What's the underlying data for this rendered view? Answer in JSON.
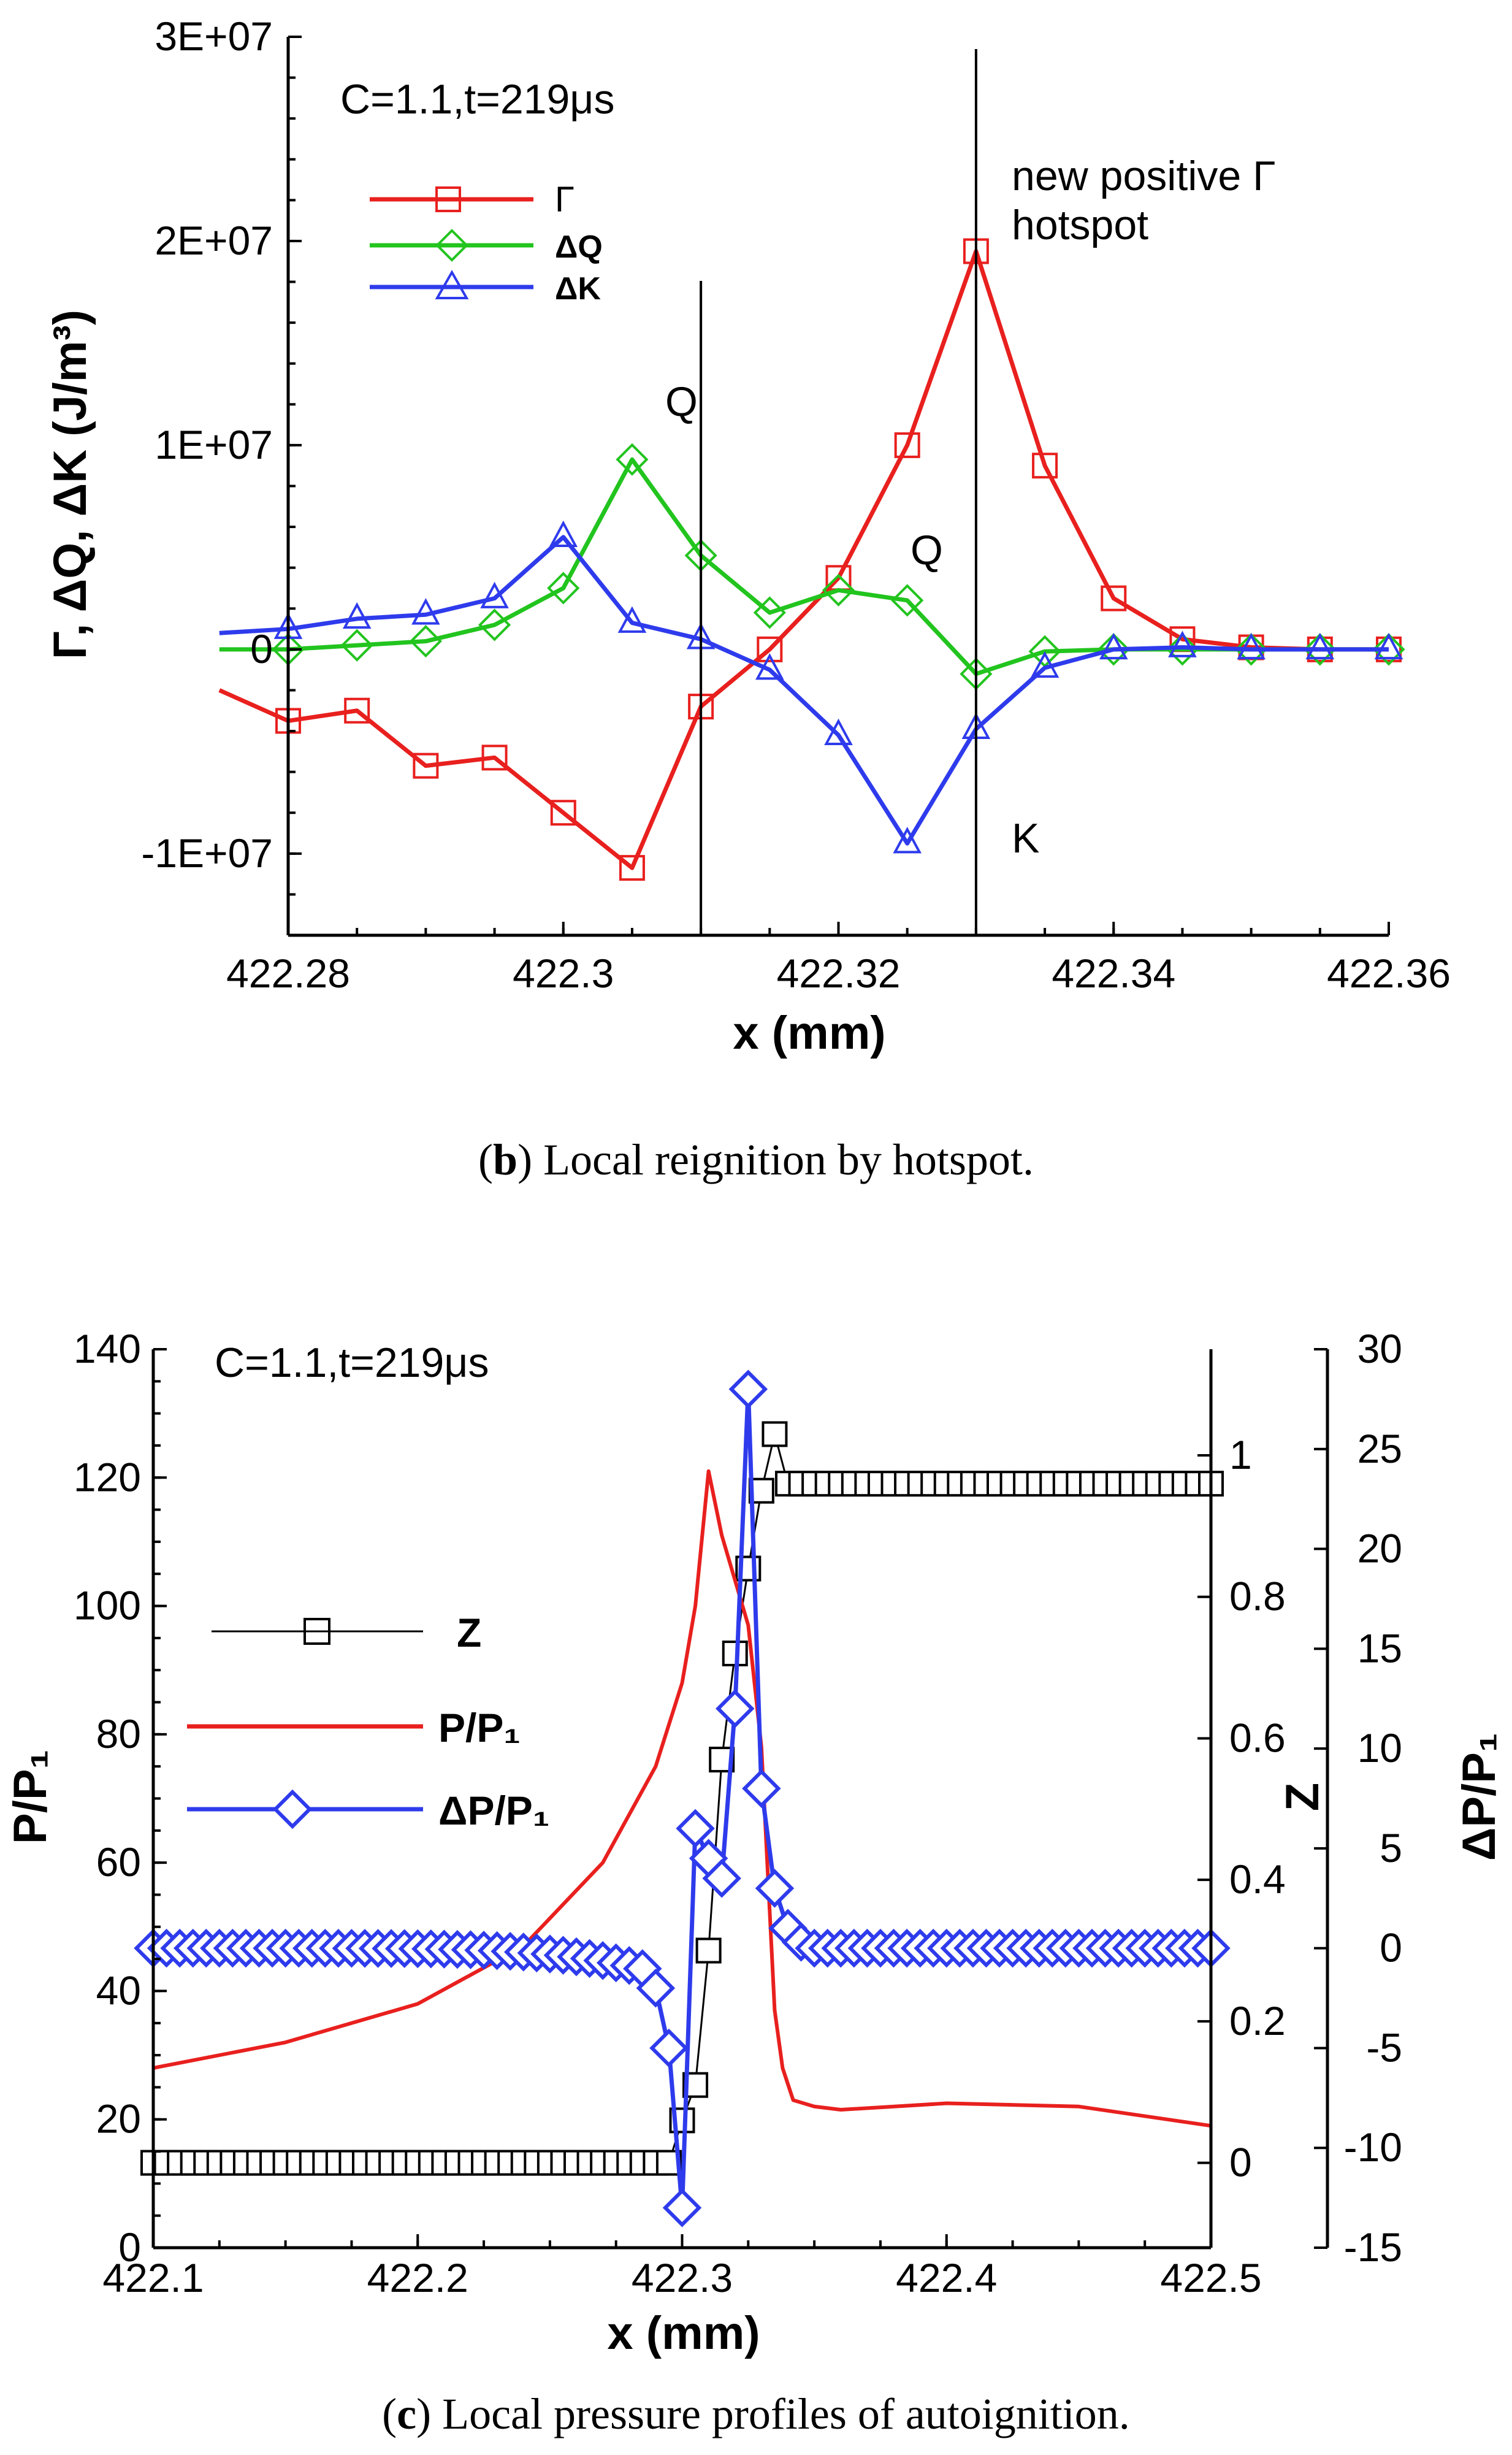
{
  "colors": {
    "red": "#e8201e",
    "green": "#22c41e",
    "blue": "#2e3bec",
    "black": "#000000"
  },
  "chart_data": [
    {
      "id": "b",
      "type": "line",
      "annotation": "C=1.1,t=219μs",
      "xlabel": "x (mm)",
      "ylabel": "Γ, ΔQ, ΔK (J/m³)",
      "xlim": [
        422.28,
        422.36
      ],
      "ylim": [
        -14000000,
        30000000
      ],
      "xticks": [
        422.28,
        422.3,
        422.32,
        422.34,
        422.36
      ],
      "xtick_labels": [
        "422.28",
        "422.3",
        "422.32",
        "422.34",
        "422.36"
      ],
      "yticks": [
        -10000000,
        0,
        10000000,
        20000000,
        30000000
      ],
      "ytick_labels": [
        "-1E+07",
        "0",
        "1E+07",
        "2E+07",
        "3E+07"
      ],
      "x": [
        422.275,
        422.28,
        422.285,
        422.29,
        422.295,
        422.3,
        422.305,
        422.31,
        422.315,
        422.32,
        422.325,
        422.33,
        422.335,
        422.34,
        422.345,
        422.35,
        422.355,
        422.36
      ],
      "series": [
        {
          "name": "Γ",
          "color": "#e8201e",
          "marker": "square",
          "values": [
            -2000000,
            -3500000,
            -3000000,
            -5700000,
            -5300000,
            -8000000,
            -10700000,
            -2800000,
            0,
            3500000,
            10000000,
            19500000,
            9000000,
            2500000,
            500000,
            100000,
            0,
            0
          ]
        },
        {
          "name": "ΔQ",
          "color": "#22c41e",
          "marker": "diamond",
          "values": [
            0,
            0,
            200000,
            400000,
            1200000,
            3000000,
            9300000,
            4600000,
            1800000,
            2900000,
            2400000,
            -1200000,
            -100000,
            0,
            0,
            0,
            0,
            0
          ]
        },
        {
          "name": "ΔK",
          "color": "#2e3bec",
          "marker": "triangle",
          "values": [
            800000,
            1000000,
            1500000,
            1700000,
            2500000,
            5500000,
            1300000,
            500000,
            -1000000,
            -4200000,
            -9500000,
            -3900000,
            -900000,
            0,
            100000,
            0,
            0,
            0
          ]
        }
      ],
      "vlines": [
        422.31,
        422.33
      ],
      "labels": {
        "q1": "Q",
        "q2": "Q",
        "k": "K",
        "hotspot_line1": "new positive Γ",
        "hotspot_line2": "hotspot"
      },
      "legend": [
        "Γ",
        "ΔQ",
        "ΔK"
      ],
      "caption_letter": "b",
      "caption_text": "Local reignition by hotspot."
    },
    {
      "id": "c",
      "type": "line",
      "annotation": "C=1.1,t=219μs",
      "xlabel": "x (mm)",
      "ylabel_left": "P/P₁",
      "ylabel_right1": "Z",
      "ylabel_right2": "ΔP/P₁",
      "xlim": [
        422.1,
        422.5
      ],
      "ylim_left": [
        0,
        140
      ],
      "ylim_right1": [
        -0.12,
        1.15
      ],
      "ylim_right2": [
        -15,
        30
      ],
      "xticks": [
        422.1,
        422.2,
        422.3,
        422.4,
        422.5
      ],
      "xtick_labels": [
        "422.1",
        "422.2",
        "422.3",
        "422.4",
        "422.5"
      ],
      "yticks_left": [
        0,
        20,
        40,
        60,
        80,
        100,
        120,
        140
      ],
      "yticks_right1": [
        0,
        0.2,
        0.4,
        0.6,
        0.8,
        1
      ],
      "ytick_labels_right1": [
        "0",
        "0.2",
        "0.4",
        "0.6",
        "0.8",
        "1"
      ],
      "yticks_right2": [
        -15,
        -10,
        -5,
        0,
        5,
        10,
        15,
        20,
        25,
        30
      ],
      "series": [
        {
          "name": "P/P₁",
          "color": "#e8201e",
          "axis": "left",
          "x": [
            422.1,
            422.15,
            422.2,
            422.24,
            422.27,
            422.29,
            422.3,
            422.305,
            422.31,
            422.315,
            422.32,
            422.325,
            422.33,
            422.335,
            422.338,
            422.342,
            422.35,
            422.36,
            422.4,
            422.45,
            422.5
          ],
          "values": [
            28,
            32,
            38,
            47,
            60,
            75,
            88,
            100,
            121,
            111,
            104,
            97,
            78,
            37,
            28,
            23,
            22,
            21.5,
            22.5,
            22,
            19
          ]
        },
        {
          "name": "Z",
          "color": "#000000",
          "axis": "right1",
          "marker": "square",
          "x": [
            422.3,
            422.305,
            422.31,
            422.315,
            422.32,
            422.325,
            422.33,
            422.335,
            422.34
          ],
          "values": [
            0.06,
            0.11,
            0.3,
            0.57,
            0.72,
            0.84,
            0.95,
            1.03,
            0.96
          ],
          "flat_left": 0,
          "flat_right": 0.96
        },
        {
          "name": "ΔP/P₁",
          "color": "#2e3bec",
          "axis": "right2",
          "marker": "diamond",
          "x": [
            422.29,
            422.295,
            422.3,
            422.305,
            422.31,
            422.315,
            422.32,
            422.325,
            422.33,
            422.335,
            422.34,
            422.345
          ],
          "values": [
            -2,
            -5,
            -13,
            6,
            4.5,
            3.5,
            12,
            28,
            8,
            3,
            1,
            0.3
          ],
          "flat_left": 0,
          "flat_right": 0
        }
      ],
      "legend": [
        "Z",
        "P/P₁",
        "ΔP/P₁"
      ],
      "caption_letter": "c",
      "caption_text": "Local pressure profiles of autoignition."
    }
  ]
}
